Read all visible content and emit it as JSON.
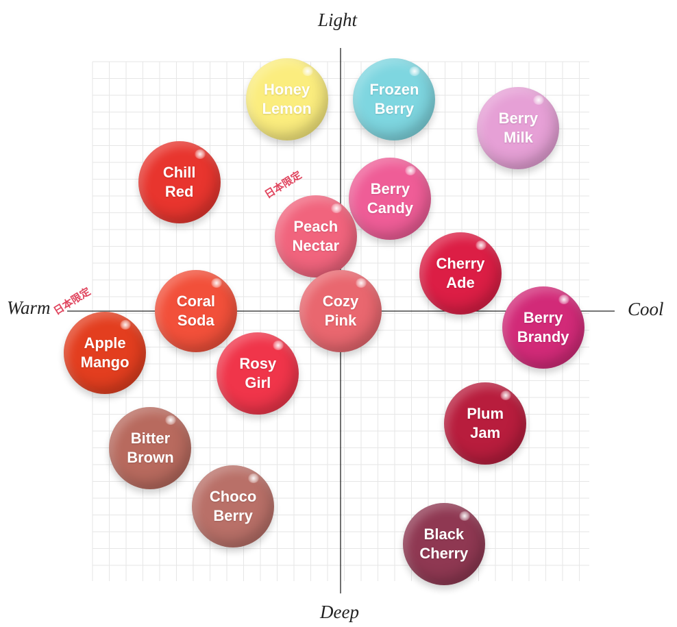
{
  "chart_data": {
    "type": "scatter",
    "title": "",
    "axes": {
      "x": {
        "negative_label": "Warm",
        "positive_label": "Cool",
        "range": [
          -6,
          6
        ]
      },
      "y": {
        "negative_label": "Deep",
        "positive_label": "Light",
        "range": [
          -6,
          6
        ]
      }
    },
    "grid": true,
    "points": [
      {
        "name": "Honey\nLemon",
        "x": -1.3,
        "y": 5.1,
        "color": "#fbed7e",
        "badge": ""
      },
      {
        "name": "Frozen\nBerry",
        "x": 1.3,
        "y": 5.1,
        "color": "#7ed6e0",
        "badge": ""
      },
      {
        "name": "Berry\nMilk",
        "x": 4.3,
        "y": 4.4,
        "color": "#e6a0d6",
        "badge": ""
      },
      {
        "name": "Chill\nRed",
        "x": -3.9,
        "y": 3.1,
        "color": "#e8352e",
        "badge": ""
      },
      {
        "name": "Berry\nCandy",
        "x": 1.2,
        "y": 2.7,
        "color": "#ef5d97",
        "badge": ""
      },
      {
        "name": "Peach\nNectar",
        "x": -0.6,
        "y": 1.8,
        "color": "#f1647d",
        "badge": "日本限定"
      },
      {
        "name": "Cherry\nAde",
        "x": 2.9,
        "y": 0.9,
        "color": "#dc1e45",
        "badge": ""
      },
      {
        "name": "Coral\nSoda",
        "x": -3.5,
        "y": 0.0,
        "color": "#f2503a",
        "badge": ""
      },
      {
        "name": "Cozy\nPink",
        "x": 0.0,
        "y": 0.0,
        "color": "#e9676f",
        "badge": ""
      },
      {
        "name": "Berry\nBrandy",
        "x": 4.9,
        "y": -0.4,
        "color": "#d22a78",
        "badge": ""
      },
      {
        "name": "Apple\nMango",
        "x": -5.7,
        "y": -1.0,
        "color": "#e33e1f",
        "badge": "日本限定"
      },
      {
        "name": "Rosy\nGirl",
        "x": -2.0,
        "y": -1.5,
        "color": "#f0354a",
        "badge": ""
      },
      {
        "name": "Plum\nJam",
        "x": 3.5,
        "y": -2.7,
        "color": "#b81d3d",
        "badge": ""
      },
      {
        "name": "Bitter\nBrown",
        "x": -4.6,
        "y": -3.3,
        "color": "#b86a5e",
        "badge": ""
      },
      {
        "name": "Choco\nBerry",
        "x": -2.6,
        "y": -4.7,
        "color": "#b97068",
        "badge": ""
      },
      {
        "name": "Black\nCherry",
        "x": 2.5,
        "y": -5.6,
        "color": "#8f3852",
        "badge": ""
      }
    ]
  }
}
